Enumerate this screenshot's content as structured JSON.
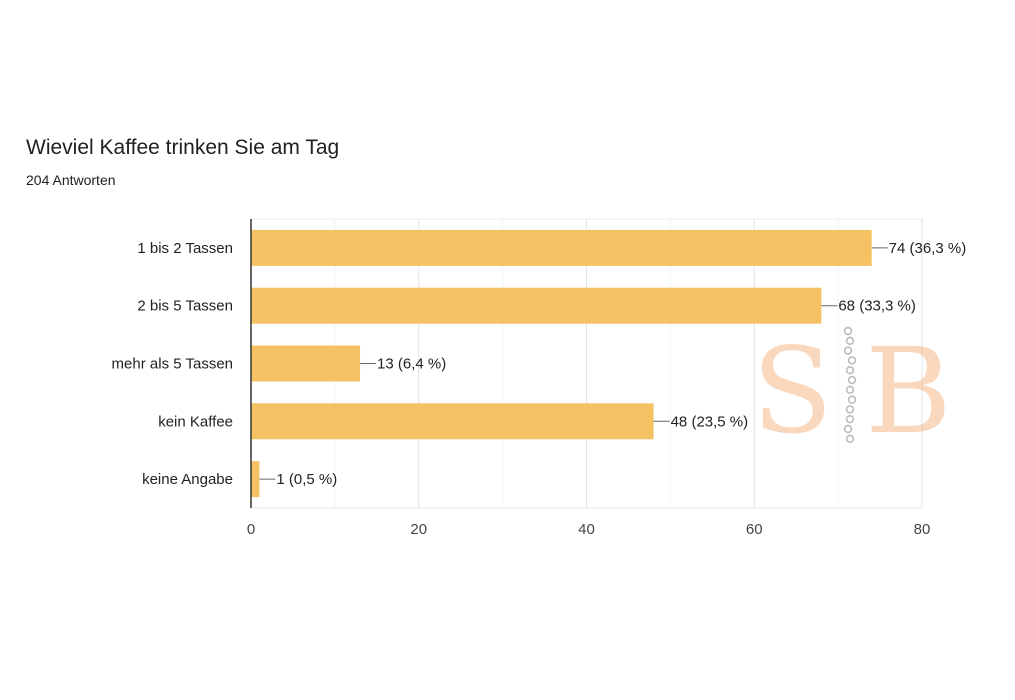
{
  "header": {
    "title": "Wieviel Kaffee trinken Sie am Tag",
    "subtitle": "204 Antworten"
  },
  "watermark": {
    "text": "SB",
    "color": "#f6b98a"
  },
  "chart_data": {
    "type": "bar",
    "orientation": "horizontal",
    "categories": [
      "1 bis 2 Tassen",
      "2 bis 5 Tassen",
      "mehr als 5 Tassen",
      "kein Kaffee",
      "keine Angabe"
    ],
    "values": [
      74,
      68,
      13,
      48,
      1
    ],
    "data_labels": [
      "74 (36,3 %)",
      "68 (33,3 %)",
      "13 (6,4 %)",
      "48 (23,5 %)",
      "1 (0,5 %)"
    ],
    "xlim": [
      0,
      80
    ],
    "xticks": [
      0,
      20,
      40,
      60,
      80
    ],
    "grid": true,
    "bar_color": "#f4c263"
  }
}
